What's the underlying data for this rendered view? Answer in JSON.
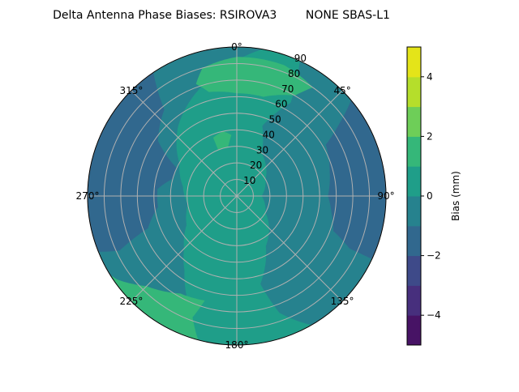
{
  "chart_data": {
    "type": "polar-contour",
    "title": "Delta Antenna Phase Biases: RSIROVA3        NONE SBAS-L1",
    "theta_direction": "clockwise",
    "theta_zero": "north",
    "theta_ticks": [
      0,
      45,
      90,
      135,
      180,
      225,
      270,
      315
    ],
    "theta_tick_labels": [
      "0°",
      "45°",
      "90°",
      "135°",
      "180°",
      "225°",
      "270°",
      "315°"
    ],
    "r_ticks": [
      10,
      20,
      30,
      40,
      50,
      60,
      70,
      80,
      90
    ],
    "r_tick_labels": [
      "10",
      "20",
      "30",
      "40",
      "50",
      "60",
      "70",
      "80",
      "90"
    ],
    "rlim": [
      0,
      90
    ],
    "grid": true,
    "levels": [
      -5,
      -4,
      -3,
      -2,
      -1,
      0,
      1,
      2,
      3,
      4,
      5
    ],
    "level_colors": [
      "#471365",
      "#472f7d",
      "#3e4a89",
      "#31688e",
      "#26828e",
      "#1f9e89",
      "#35b779",
      "#6ece58",
      "#b5de2b",
      "#e4e419"
    ],
    "background_band": [
      0,
      1
    ],
    "regions": [
      {
        "band": [
          -1,
          0
        ],
        "points": [
          [
            25,
            90
          ],
          [
            30,
            65
          ],
          [
            20,
            45
          ],
          [
            30,
            30
          ],
          [
            60,
            20
          ],
          [
            90,
            15
          ],
          [
            120,
            20
          ],
          [
            150,
            35
          ],
          [
            165,
            55
          ],
          [
            160,
            75
          ],
          [
            150,
            90
          ],
          [
            90,
            90
          ]
        ]
      },
      {
        "band": [
          -1,
          0
        ],
        "points": [
          [
            200,
            90
          ],
          [
            205,
            70
          ],
          [
            215,
            55
          ],
          [
            225,
            45
          ],
          [
            240,
            35
          ],
          [
            260,
            30
          ],
          [
            280,
            33
          ],
          [
            300,
            40
          ],
          [
            320,
            55
          ],
          [
            340,
            68
          ],
          [
            355,
            78
          ],
          [
            365,
            86
          ],
          [
            370,
            90
          ],
          [
            280,
            90
          ]
        ]
      },
      {
        "band": [
          -2,
          -1
        ],
        "points": [
          [
            248,
            90
          ],
          [
            245,
            78
          ],
          [
            250,
            57
          ],
          [
            262,
            48
          ],
          [
            275,
            48
          ],
          [
            285,
            40
          ],
          [
            295,
            40
          ],
          [
            305,
            58
          ],
          [
            320,
            68
          ],
          [
            326,
            90
          ],
          [
            290,
            90
          ]
        ]
      },
      {
        "band": [
          -2,
          -1
        ],
        "points": [
          [
            50,
            90
          ],
          [
            55,
            75
          ],
          [
            60,
            62
          ],
          [
            75,
            58
          ],
          [
            90,
            55
          ],
          [
            100,
            58
          ],
          [
            110,
            62
          ],
          [
            115,
            75
          ],
          [
            115,
            90
          ],
          [
            80,
            90
          ]
        ]
      },
      {
        "band": [
          1,
          2
        ],
        "points": [
          [
            -20,
            72
          ],
          [
            -15,
            65
          ],
          [
            0,
            62
          ],
          [
            15,
            62
          ],
          [
            30,
            70
          ],
          [
            35,
            80
          ],
          [
            20,
            84
          ],
          [
            0,
            84
          ],
          [
            -15,
            80
          ]
        ]
      },
      {
        "band": [
          1,
          2
        ],
        "points": [
          [
            -22,
            30
          ],
          [
            -10,
            30
          ],
          [
            -5,
            37
          ],
          [
            -12,
            40
          ],
          [
            -22,
            38
          ]
        ]
      },
      {
        "band": [
          1,
          2
        ],
        "points": [
          [
            195,
            90
          ],
          [
            200,
            78
          ],
          [
            197,
            66
          ],
          [
            210,
            68
          ],
          [
            225,
            77
          ],
          [
            235,
            88
          ],
          [
            238,
            90
          ],
          [
            215,
            90
          ]
        ]
      }
    ],
    "colorbar": {
      "label": "Bias (mm)",
      "range": [
        -5,
        5
      ],
      "ticks": [
        -4,
        -2,
        0,
        2,
        4
      ],
      "tick_labels": [
        "−4",
        "−2",
        "0",
        "2",
        "4"
      ]
    }
  }
}
